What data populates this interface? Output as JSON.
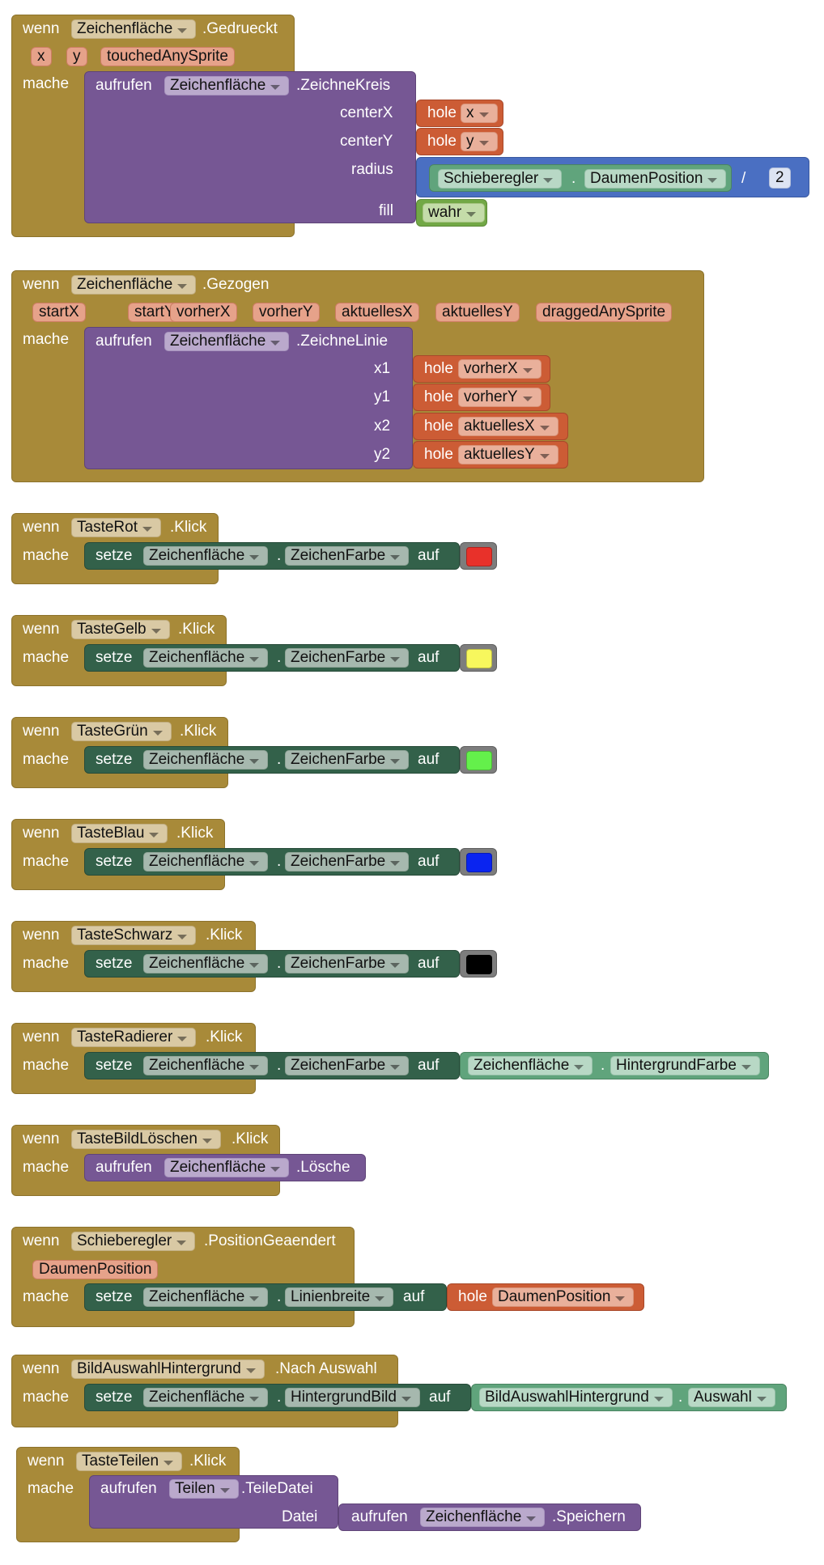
{
  "keywords": {
    "when": "wenn",
    "do": "mache",
    "call": "aufrufen",
    "set": "setze",
    "to": "auf",
    "get": "hole",
    "dot": ".",
    "divide": "/"
  },
  "b1": {
    "component": "Zeichenfläche",
    "event": ".Gedrueckt",
    "params": [
      "x",
      "y",
      "touchedAnySprite"
    ],
    "method": ".ZeichneKreis",
    "args": [
      "centerX",
      "centerY",
      "radius",
      "fill"
    ],
    "getx": "x",
    "gety": "y",
    "slider": "Schieberegler",
    "thumb": "DaumenPosition",
    "divisor": "2",
    "fill": "wahr"
  },
  "b2": {
    "component": "Zeichenfläche",
    "event": ".Gezogen",
    "params": [
      "startX",
      "startY",
      "vorherX",
      "vorherY",
      "aktuellesX",
      "aktuellesY",
      "draggedAnySprite"
    ],
    "method": ".ZeichneLinie",
    "args": [
      "x1",
      "y1",
      "x2",
      "y2"
    ],
    "gets": [
      "vorherX",
      "vorherY",
      "aktuellesX",
      "aktuellesY"
    ]
  },
  "colorButtons": [
    {
      "button": "TasteRot",
      "event": ".Klick",
      "component": "Zeichenfläche",
      "property": "ZeichenFarbe",
      "swatch": "#e8312a"
    },
    {
      "button": "TasteGelb",
      "event": ".Klick",
      "component": "Zeichenfläche",
      "property": "ZeichenFarbe",
      "swatch": "#f7f75d"
    },
    {
      "button": "TasteGrün",
      "event": ".Klick",
      "component": "Zeichenfläche",
      "property": "ZeichenFarbe",
      "swatch": "#64f04b"
    },
    {
      "button": "TasteBlau",
      "event": ".Klick",
      "component": "Zeichenfläche",
      "property": "ZeichenFarbe",
      "swatch": "#0a24f0"
    },
    {
      "button": "TasteSchwarz",
      "event": ".Klick",
      "component": "Zeichenfläche",
      "property": "ZeichenFarbe",
      "swatch": "#000000"
    }
  ],
  "eraser": {
    "button": "TasteRadierer",
    "event": ".Klick",
    "component": "Zeichenfläche",
    "property": "ZeichenFarbe",
    "valueComponent": "Zeichenfläche",
    "valueProperty": "HintergrundFarbe"
  },
  "clear": {
    "button": "TasteBildLöschen",
    "event": ".Klick",
    "component": "Zeichenfläche",
    "method": ".Lösche"
  },
  "slider": {
    "component": "Schieberegler",
    "event": ".PositionGeaendert",
    "param": "DaumenPosition",
    "setComponent": "Zeichenfläche",
    "property": "Linienbreite",
    "get": "DaumenPosition"
  },
  "picker": {
    "component": "BildAuswahlHintergrund",
    "event": ".Nach Auswahl",
    "setComponent": "Zeichenfläche",
    "property": "HintergrundBild",
    "valueComponent": "BildAuswahlHintergrund",
    "valueProperty": "Auswahl"
  },
  "share": {
    "button": "TasteTeilen",
    "event": ".Klick",
    "callComponent": "Teilen",
    "method": ".TeileDatei",
    "arg": "Datei",
    "innerComponent": "Zeichenfläche",
    "innerMethod": ".Speichern"
  }
}
